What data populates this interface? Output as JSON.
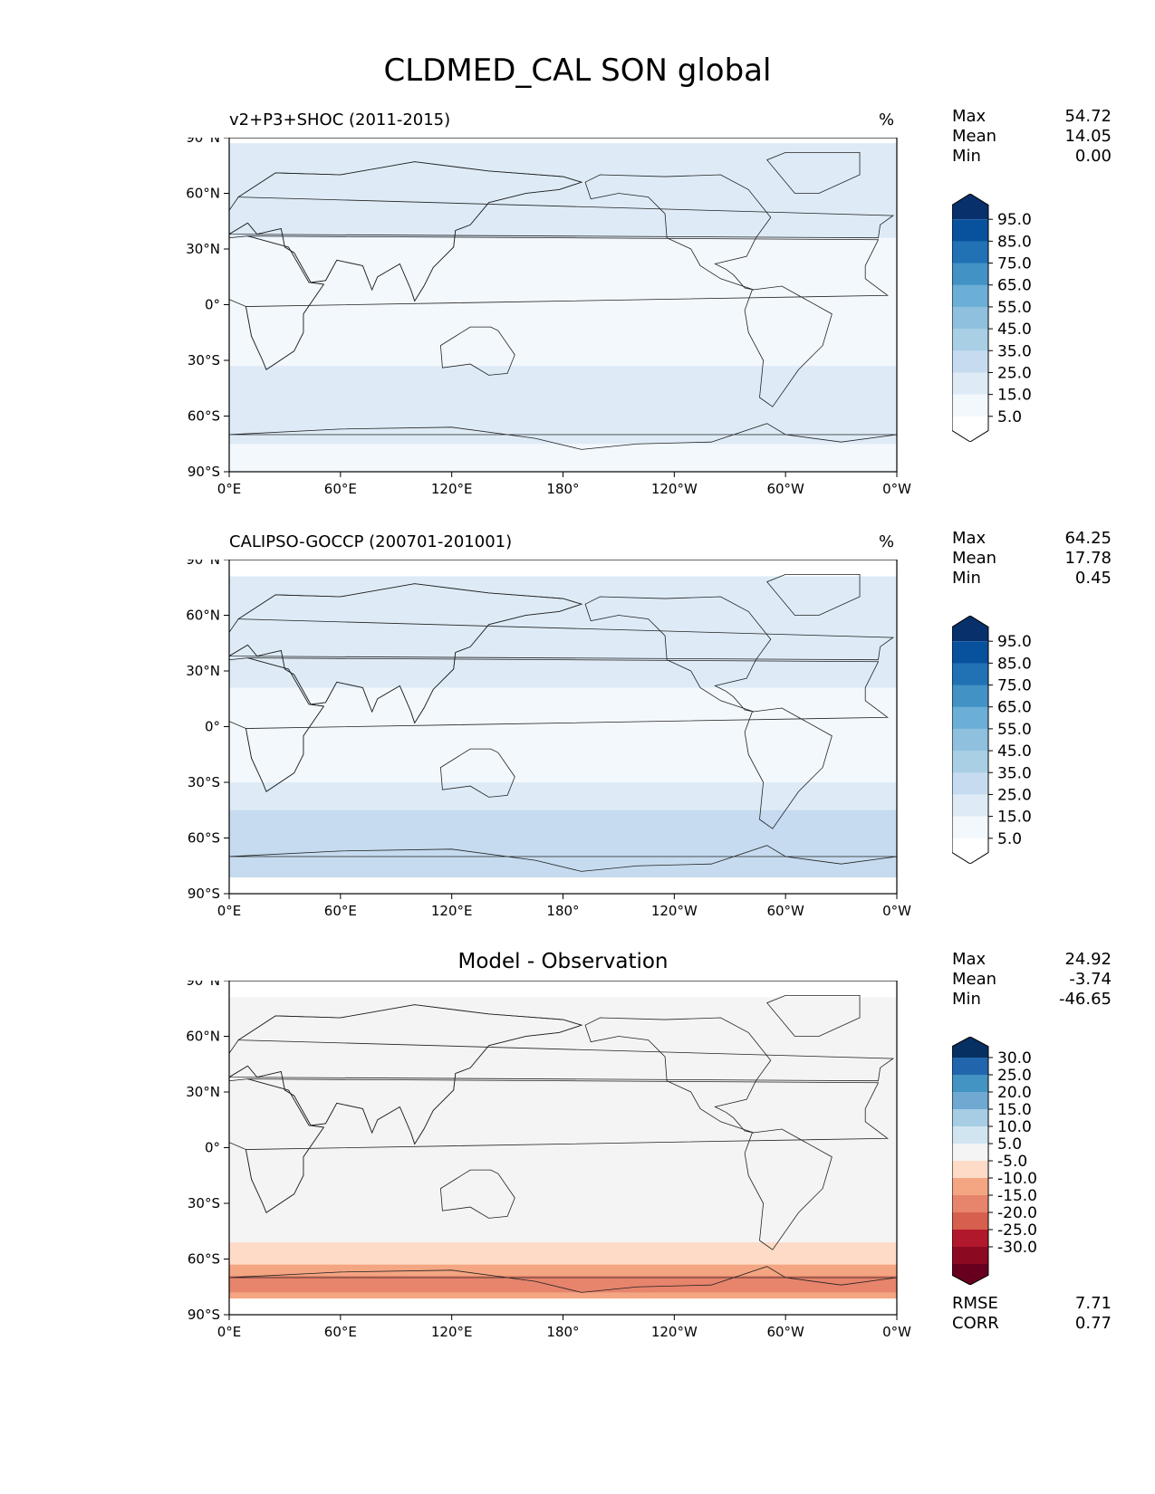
{
  "title": "CLDMED_CAL SON global",
  "panels": [
    {
      "id": "test",
      "title_left": "v2+P3+SHOC (2011-2015)",
      "title_center": "",
      "units": "%",
      "stats": [
        {
          "label": "Max",
          "value": "54.72"
        },
        {
          "label": "Mean",
          "value": "14.05"
        },
        {
          "label": "Min",
          "value": "0.00"
        }
      ],
      "colorbar": {
        "labels": [
          "95.0",
          "85.0",
          "75.0",
          "65.0",
          "55.0",
          "45.0",
          "35.0",
          "25.0",
          "15.0",
          "5.0"
        ],
        "colors": [
          "#08306b",
          "#08519c",
          "#2171b5",
          "#4292c6",
          "#6baed6",
          "#8fc1de",
          "#a9cfe5",
          "#c6dbef",
          "#deebf7",
          "#f3f8fd",
          "#ffffff"
        ]
      },
      "footer": []
    },
    {
      "id": "reference",
      "title_left": "CALIPSO-GOCCP (200701-201001)",
      "title_center": "",
      "units": "%",
      "stats": [
        {
          "label": "Max",
          "value": "64.25"
        },
        {
          "label": "Mean",
          "value": "17.78"
        },
        {
          "label": "Min",
          "value": "0.45"
        }
      ],
      "colorbar": {
        "labels": [
          "95.0",
          "85.0",
          "75.0",
          "65.0",
          "55.0",
          "45.0",
          "35.0",
          "25.0",
          "15.0",
          "5.0"
        ],
        "colors": [
          "#08306b",
          "#08519c",
          "#2171b5",
          "#4292c6",
          "#6baed6",
          "#8fc1de",
          "#a9cfe5",
          "#c6dbef",
          "#deebf7",
          "#f3f8fd",
          "#ffffff"
        ]
      },
      "footer": []
    },
    {
      "id": "difference",
      "title_left": "",
      "title_center": "Model - Observation",
      "units": "",
      "stats": [
        {
          "label": "Max",
          "value": "24.92"
        },
        {
          "label": "Mean",
          "value": "-3.74"
        },
        {
          "label": "Min",
          "value": "-46.65"
        }
      ],
      "colorbar": {
        "labels": [
          "30.0",
          "25.0",
          "20.0",
          "15.0",
          "10.0",
          "5.0",
          "-5.0",
          "-10.0",
          "-15.0",
          "-20.0",
          "-25.0",
          "-30.0"
        ],
        "colors": [
          "#053061",
          "#2166ac",
          "#4393c3",
          "#6fa9d2",
          "#a6cde3",
          "#d1e5f0",
          "#f4f4f4",
          "#fddbc7",
          "#f4a582",
          "#e7846c",
          "#d6604d",
          "#b2182b",
          "#8b0a22",
          "#67001f"
        ]
      },
      "footer": [
        {
          "label": "RMSE",
          "value": "7.71"
        },
        {
          "label": "CORR",
          "value": "0.77"
        }
      ]
    }
  ],
  "chart_data": [
    {
      "type": "heatmap",
      "title": "v2+P3+SHOC (2011-2015)",
      "units": "%",
      "x_ticks": [
        "0°E",
        "60°E",
        "120°E",
        "180°",
        "120°W",
        "60°W",
        "0°W"
      ],
      "y_ticks": [
        "90°N",
        "60°N",
        "30°N",
        "0°",
        "30°S",
        "60°S",
        "90°S"
      ],
      "xlim": [
        0,
        360
      ],
      "ylim": [
        -90,
        90
      ],
      "levels": [
        5,
        15,
        25,
        35,
        45,
        55,
        65,
        75,
        85,
        95
      ],
      "zonal_profile": {
        "lat": [
          -90,
          -75,
          -60,
          -45,
          -30,
          -15,
          0,
          15,
          30,
          45,
          60,
          75,
          88
        ],
        "value": [
          12,
          14,
          24,
          23,
          12,
          7,
          8,
          10,
          13,
          19,
          25,
          24,
          14
        ]
      },
      "stats": {
        "max": 54.72,
        "mean": 14.05,
        "min": 0.0
      }
    },
    {
      "type": "heatmap",
      "title": "CALIPSO-GOCCP (200701-201001)",
      "units": "%",
      "x_ticks": [
        "0°E",
        "60°E",
        "120°E",
        "180°",
        "120°W",
        "60°W",
        "0°W"
      ],
      "y_ticks": [
        "90°N",
        "60°N",
        "30°N",
        "0°",
        "30°S",
        "60°S",
        "90°S"
      ],
      "xlim": [
        0,
        360
      ],
      "ylim": [
        -90,
        90
      ],
      "levels": [
        5,
        15,
        25,
        35,
        45,
        55,
        65,
        75,
        85,
        95
      ],
      "zonal_profile": {
        "lat": [
          -82,
          -75,
          -60,
          -45,
          -30,
          -15,
          0,
          15,
          30,
          45,
          60,
          75,
          82
        ],
        "value": [
          24,
          28,
          30,
          26,
          14,
          9,
          11,
          13,
          17,
          21,
          25,
          24,
          22
        ]
      },
      "stats": {
        "max": 64.25,
        "mean": 17.78,
        "min": 0.45
      }
    },
    {
      "type": "heatmap",
      "title": "Model - Observation",
      "x_ticks": [
        "0°E",
        "60°E",
        "120°E",
        "180°",
        "120°W",
        "60°W",
        "0°W"
      ],
      "y_ticks": [
        "90°N",
        "60°N",
        "30°N",
        "0°",
        "30°S",
        "60°S",
        "90°S"
      ],
      "xlim": [
        0,
        360
      ],
      "ylim": [
        -90,
        90
      ],
      "levels": [
        -30,
        -25,
        -20,
        -15,
        -10,
        -5,
        5,
        10,
        15,
        20,
        25,
        30
      ],
      "zonal_profile": {
        "lat": [
          -82,
          -75,
          -60,
          -45,
          -30,
          -15,
          0,
          15,
          30,
          45,
          60,
          75,
          82
        ],
        "value": [
          -12,
          -18,
          -9,
          -3,
          -2,
          -2,
          -3,
          -2,
          -4,
          -2,
          -1,
          -5,
          -3
        ]
      },
      "stats": {
        "max": 24.92,
        "mean": -3.74,
        "min": -46.65,
        "rmse": 7.71,
        "corr": 0.77
      }
    }
  ]
}
